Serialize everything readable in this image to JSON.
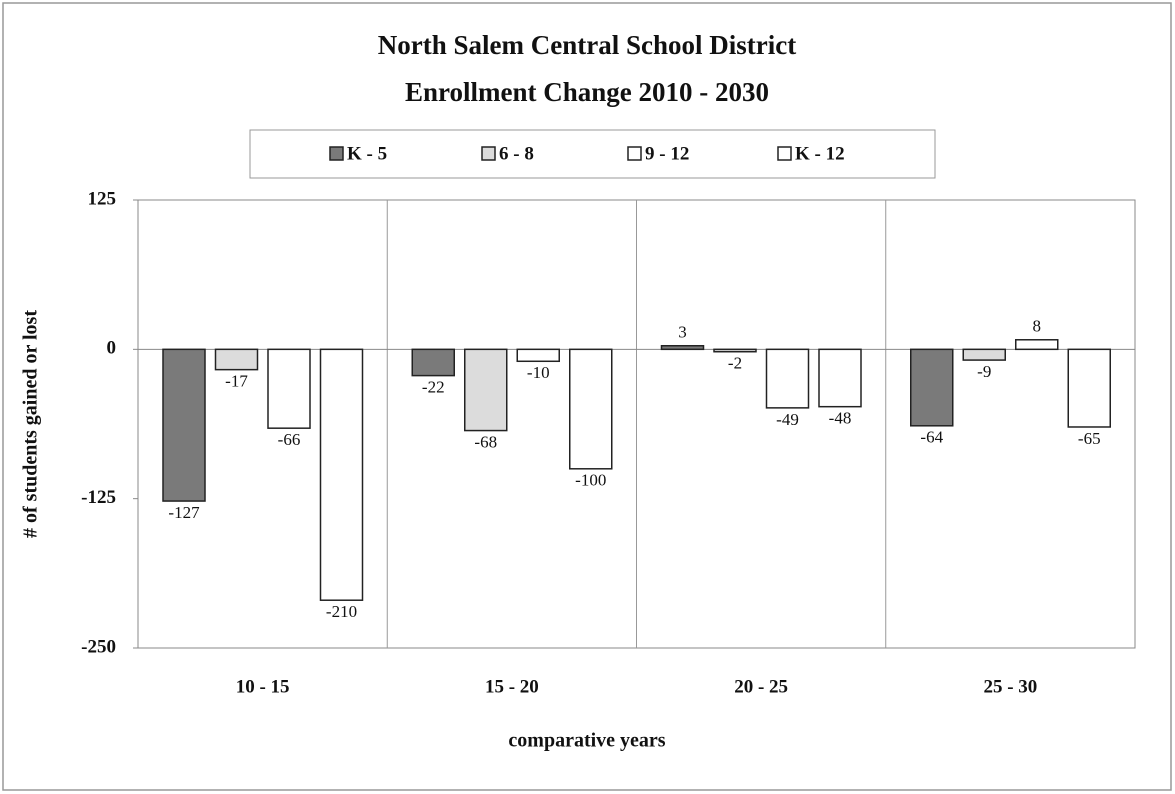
{
  "chart_data": {
    "type": "bar",
    "title": "North Salem Central School District",
    "subtitle": "Enrollment Change  2010 - 2030",
    "xlabel": "comparative years",
    "ylabel": "# of students gained or lost",
    "categories": [
      "10 - 15",
      "15 - 20",
      "20 - 25",
      "25 - 30"
    ],
    "series": [
      {
        "name": "K - 5",
        "color": "#7a7a7a",
        "values": [
          -127,
          -22,
          3,
          -64
        ]
      },
      {
        "name": "6 - 8",
        "color": "#dcdcdc",
        "values": [
          -17,
          -68,
          -2,
          -9
        ]
      },
      {
        "name": "9 - 12",
        "color": "#ffffff",
        "values": [
          -66,
          -10,
          -49,
          8
        ]
      },
      {
        "name": "K - 12",
        "color": "#ffffff",
        "values": [
          -210,
          -100,
          -48,
          -65
        ]
      }
    ],
    "ylim": [
      -250,
      125
    ],
    "yticks": [
      -250,
      -125,
      0,
      125
    ],
    "grid": false,
    "legend": "top"
  }
}
